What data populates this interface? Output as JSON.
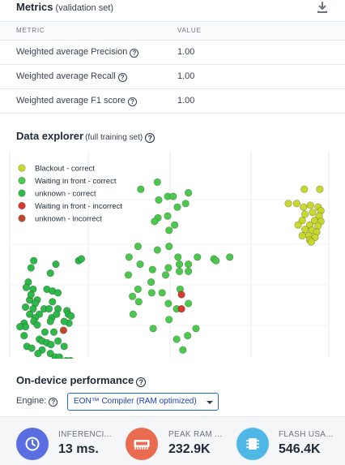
{
  "metrics": {
    "title": "Metrics",
    "subtitle": "(validation set)",
    "columns": {
      "metric": "METRIC",
      "value": "VALUE"
    },
    "rows": [
      {
        "label": "Weighted average Precision",
        "value": "1.00"
      },
      {
        "label": "Weighted average Recall",
        "value": "1.00"
      },
      {
        "label": "Weighted average F1 score",
        "value": "1.00"
      }
    ]
  },
  "data_explorer": {
    "title": "Data explorer",
    "subtitle": "(full training set)",
    "legend": [
      {
        "label": "Blackout - correct",
        "color": "#c8d82e"
      },
      {
        "label": "Waiting in front - correct",
        "color": "#4cc94c"
      },
      {
        "label": "unknown - correct",
        "color": "#2fb84a"
      },
      {
        "label": "Waiting in front - incorrect",
        "color": "#d83a2e"
      },
      {
        "label": "unknown - incorrect",
        "color": "#c0482a"
      }
    ],
    "points": {
      "blackout_correct": [
        [
          0.882,
          0.16
        ],
        [
          0.927,
          0.16
        ],
        [
          0.836,
          0.24
        ],
        [
          0.86,
          0.24
        ],
        [
          0.88,
          0.26
        ],
        [
          0.9,
          0.25
        ],
        [
          0.922,
          0.26
        ],
        [
          0.93,
          0.28
        ],
        [
          0.884,
          0.3
        ],
        [
          0.906,
          0.29
        ],
        [
          0.925,
          0.31
        ],
        [
          0.876,
          0.335
        ],
        [
          0.912,
          0.335
        ],
        [
          0.93,
          0.34
        ],
        [
          0.864,
          0.36
        ],
        [
          0.898,
          0.36
        ],
        [
          0.922,
          0.365
        ],
        [
          0.884,
          0.385
        ],
        [
          0.904,
          0.39
        ],
        [
          0.918,
          0.4
        ],
        [
          0.876,
          0.42
        ],
        [
          0.895,
          0.42
        ],
        [
          0.913,
          0.43
        ],
        [
          0.898,
          0.445
        ],
        [
          0.902,
          0.455
        ]
      ],
      "waiting_front_correct": [
        [
          0.456,
          0.12
        ],
        [
          0.408,
          0.16
        ],
        [
          0.546,
          0.18
        ],
        [
          0.486,
          0.2
        ],
        [
          0.502,
          0.2
        ],
        [
          0.46,
          0.22
        ],
        [
          0.538,
          0.24
        ],
        [
          0.514,
          0.26
        ],
        [
          0.458,
          0.32
        ],
        [
          0.486,
          0.31
        ],
        [
          0.448,
          0.34
        ],
        [
          0.506,
          0.36
        ],
        [
          0.49,
          0.39
        ],
        [
          0.49,
          0.48
        ],
        [
          0.456,
          0.5
        ],
        [
          0.4,
          0.48
        ],
        [
          0.374,
          0.54
        ],
        [
          0.406,
          0.58
        ],
        [
          0.442,
          0.61
        ],
        [
          0.488,
          0.6
        ],
        [
          0.52,
          0.62
        ],
        [
          0.572,
          0.54
        ],
        [
          0.516,
          0.54
        ],
        [
          0.546,
          0.58
        ],
        [
          0.52,
          0.58
        ],
        [
          0.62,
          0.55
        ],
        [
          0.626,
          0.56
        ],
        [
          0.666,
          0.54
        ],
        [
          0.438,
          0.68
        ],
        [
          0.48,
          0.64
        ],
        [
          0.4,
          0.72
        ],
        [
          0.44,
          0.74
        ],
        [
          0.522,
          0.72
        ],
        [
          0.402,
          0.79
        ],
        [
          0.386,
          0.86
        ],
        [
          0.488,
          0.8
        ],
        [
          0.512,
          0.83
        ],
        [
          0.546,
          0.8
        ],
        [
          0.49,
          0.89
        ],
        [
          0.444,
          0.94
        ],
        [
          0.568,
          0.94
        ],
        [
          0.544,
          0.98
        ],
        [
          0.512,
          1.0
        ],
        [
          0.53,
          1.06
        ],
        [
          0.384,
          0.76
        ],
        [
          0.372,
          0.64
        ],
        [
          0.47,
          0.74
        ],
        [
          0.546,
          0.62
        ]
      ],
      "unknown_correct": [
        [
          0.228,
          0.56
        ],
        [
          0.236,
          0.55
        ],
        [
          0.098,
          0.56
        ],
        [
          0.09,
          0.6
        ],
        [
          0.162,
          0.58
        ],
        [
          0.146,
          0.63
        ],
        [
          0.082,
          0.68
        ],
        [
          0.076,
          0.71
        ],
        [
          0.096,
          0.72
        ],
        [
          0.136,
          0.72
        ],
        [
          0.152,
          0.73
        ],
        [
          0.168,
          0.74
        ],
        [
          0.086,
          0.78
        ],
        [
          0.108,
          0.78
        ],
        [
          0.152,
          0.79
        ],
        [
          0.102,
          0.8
        ],
        [
          0.128,
          0.83
        ],
        [
          0.142,
          0.83
        ],
        [
          0.168,
          0.83
        ],
        [
          0.194,
          0.84
        ],
        [
          0.086,
          0.86
        ],
        [
          0.114,
          0.86
        ],
        [
          0.198,
          0.86
        ],
        [
          0.15,
          0.88
        ],
        [
          0.102,
          0.88
        ],
        [
          0.206,
          0.87
        ],
        [
          0.07,
          0.91
        ],
        [
          0.098,
          0.9
        ],
        [
          0.146,
          0.9
        ],
        [
          0.074,
          0.93
        ],
        [
          0.114,
          1.0
        ],
        [
          0.122,
          1.01
        ],
        [
          0.168,
          1.01
        ],
        [
          0.136,
          1.02
        ],
        [
          0.148,
          1.03
        ],
        [
          0.186,
          1.04
        ],
        [
          0.078,
          1.04
        ],
        [
          0.092,
          1.05
        ],
        [
          0.058,
          0.93
        ],
        [
          0.2,
          0.91
        ],
        [
          0.07,
          0.98
        ],
        [
          0.13,
          0.96
        ],
        [
          0.108,
          0.92
        ],
        [
          0.09,
          0.75
        ],
        [
          0.186,
          0.9
        ],
        [
          0.156,
          0.96
        ],
        [
          0.122,
          1.06
        ],
        [
          0.096,
          0.83
        ],
        [
          0.074,
          0.82
        ],
        [
          0.164,
          0.86
        ],
        [
          0.11,
          1.08
        ],
        [
          0.146,
          1.08
        ],
        [
          0.16,
          1.1
        ],
        [
          0.172,
          1.1
        ],
        [
          0.192,
          1.12
        ],
        [
          0.204,
          1.12
        ]
      ],
      "waiting_front_incorrect": [
        [
          0.526,
          0.75
        ],
        [
          0.526,
          0.83
        ]
      ],
      "unknown_incorrect": [
        [
          0.184,
          0.95
        ]
      ]
    }
  },
  "performance": {
    "title": "On-device performance",
    "engine_label": "Engine:",
    "engine_value": "EON™ Compiler (RAM optimized)",
    "items": [
      {
        "label": "INFERENCI...",
        "value": "13 ms.",
        "color": "#5b6ee1",
        "icon": "clock-icon"
      },
      {
        "label": "PEAK RAM ...",
        "value": "232.9K",
        "color": "#ea6b4f",
        "icon": "memory-chip-icon"
      },
      {
        "label": "FLASH USA...",
        "value": "546.4K",
        "color": "#4fb8e6",
        "icon": "microchip-icon"
      }
    ]
  }
}
